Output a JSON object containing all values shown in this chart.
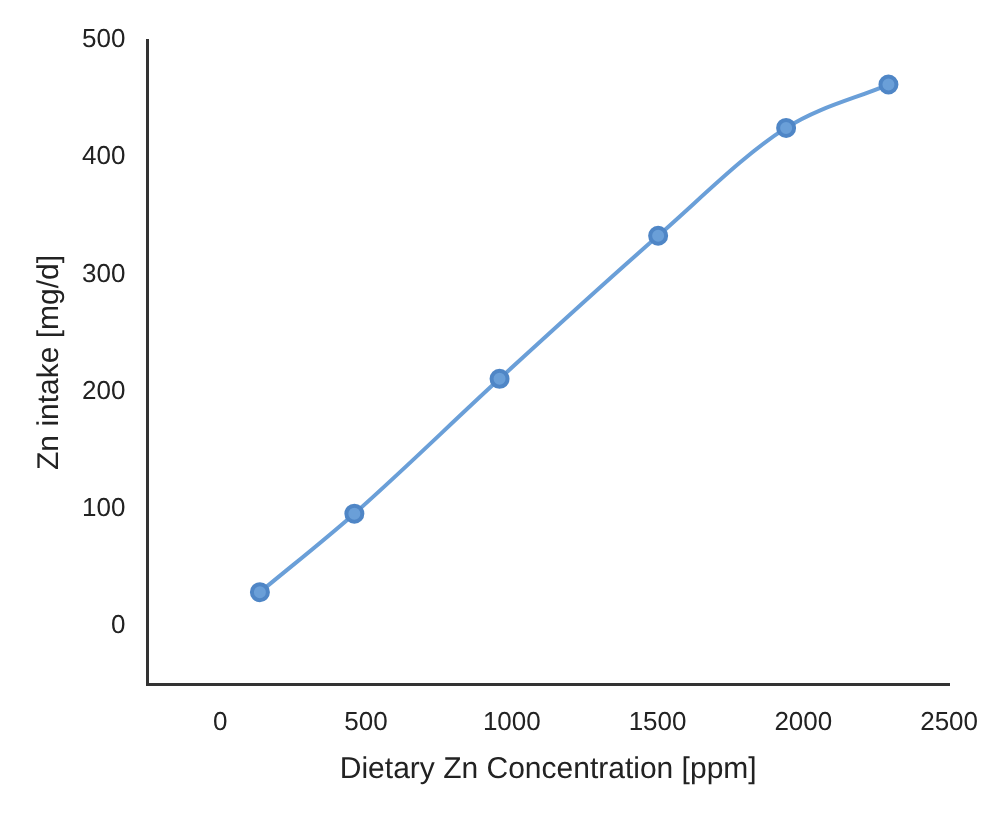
{
  "chart_data": {
    "type": "line",
    "xlabel": "Dietary Zn Concentration [ppm]",
    "ylabel": "Zn intake [mg/d]",
    "x": [
      136,
      460,
      958,
      1502,
      1941,
      2292
    ],
    "series": [
      {
        "color": "#6a9fd8",
        "values": [
          29,
          96,
          211,
          333,
          425,
          462
        ]
      }
    ],
    "xlim": [
      -250,
      2500
    ],
    "xticks": [
      0,
      500,
      1000,
      1500,
      2000,
      2500
    ],
    "ylim": [
      -50,
      500
    ],
    "yticks": [
      0,
      100,
      200,
      300,
      400,
      500
    ],
    "marker": "circle",
    "grid": false,
    "legend": false
  }
}
